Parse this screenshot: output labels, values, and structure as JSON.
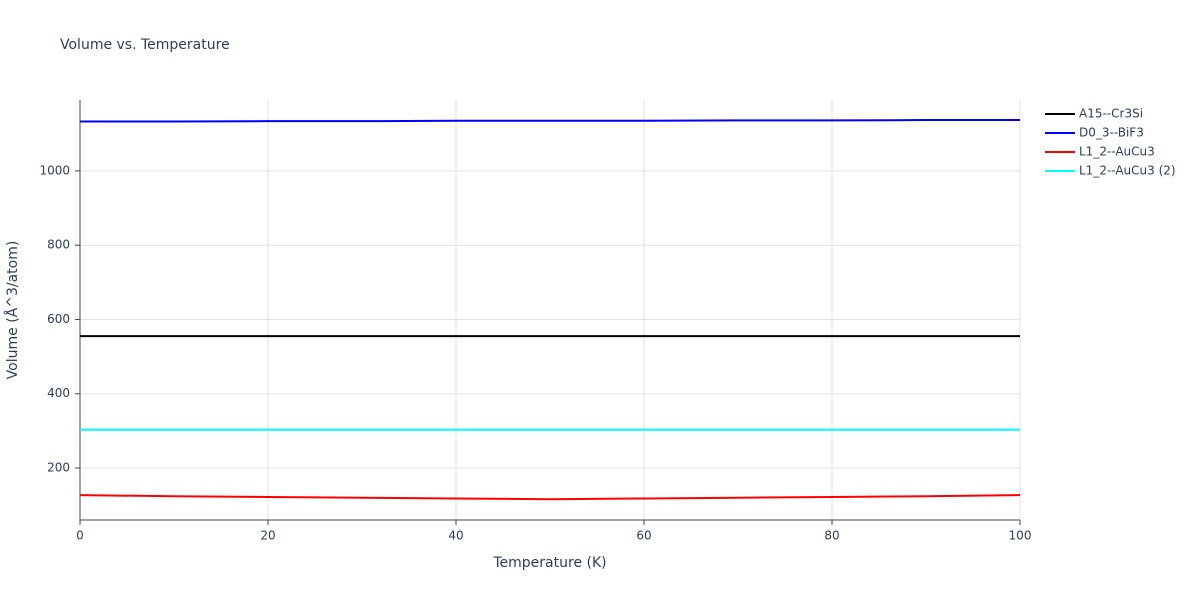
{
  "chart_data": {
    "type": "line",
    "title": "Volume vs. Temperature",
    "x_label": "Temperature (K)",
    "y_label": "Volume (Å^3/atom)",
    "x": [
      0,
      10,
      20,
      30,
      40,
      50,
      60,
      70,
      80,
      90,
      100
    ],
    "series": [
      {
        "name": "A15--Cr3Si",
        "color": "#000000",
        "values": [
          555,
          555,
          555,
          555,
          555,
          555,
          555,
          555,
          555,
          555,
          555
        ]
      },
      {
        "name": "D0_3--BiF3",
        "color": "#0000ff",
        "values": [
          1133,
          1133,
          1134,
          1134,
          1135,
          1135,
          1135,
          1136,
          1136,
          1137,
          1137
        ]
      },
      {
        "name": "L1_2--AuCu3",
        "color": "#ff0000",
        "values": [
          127,
          124,
          122,
          120,
          118,
          116,
          118,
          120,
          122,
          124,
          127
        ]
      },
      {
        "name": "L1_2--AuCu3 (2)",
        "color": "#00ffff",
        "values": [
          303,
          303,
          303,
          303,
          303,
          303,
          303,
          303,
          303,
          303,
          303
        ]
      }
    ],
    "xlim": [
      0,
      100
    ],
    "xticks": [
      0,
      20,
      40,
      60,
      80,
      100
    ],
    "ylim": [
      60,
      1191
    ],
    "yticks": [
      200,
      400,
      600,
      800,
      1000
    ],
    "grid": true,
    "legend": "top-right"
  }
}
